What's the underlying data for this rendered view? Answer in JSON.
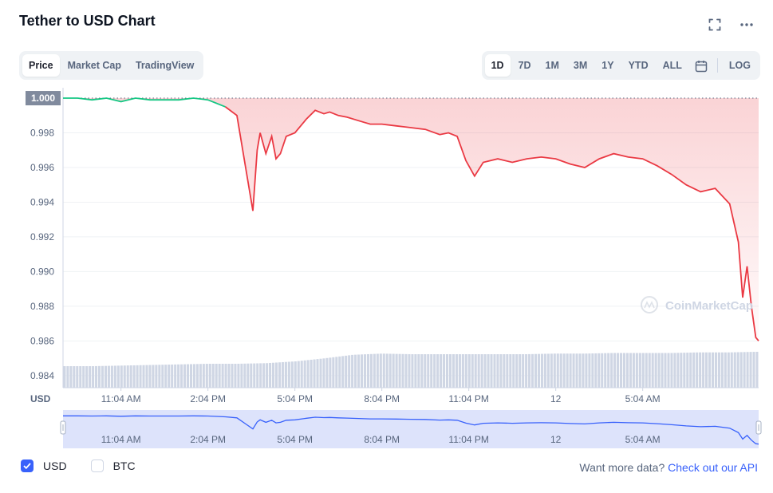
{
  "header": {
    "title": "Tether to USD Chart"
  },
  "icons": {
    "fullscreen": "fullscreen-icon",
    "more": "more-dots-icon",
    "calendar": "calendar-icon",
    "watermark": "coinmarketcap-logo-icon"
  },
  "view_tabs": [
    {
      "label": "Price",
      "active": true
    },
    {
      "label": "Market Cap",
      "active": false
    },
    {
      "label": "TradingView",
      "active": false
    }
  ],
  "range_tabs": [
    {
      "label": "1D",
      "active": true
    },
    {
      "label": "7D",
      "active": false
    },
    {
      "label": "1M",
      "active": false
    },
    {
      "label": "3M",
      "active": false
    },
    {
      "label": "1Y",
      "active": false
    },
    {
      "label": "YTD",
      "active": false
    },
    {
      "label": "ALL",
      "active": false
    }
  ],
  "log_label": "LOG",
  "watermark_text": "CoinMarketCap",
  "legend": {
    "usd_label": "USD",
    "btc_label": "BTC",
    "usd_checked": true,
    "btc_checked": false
  },
  "more_data": {
    "prefix": "Want more data?",
    "link": "Check out our API"
  },
  "colors": {
    "up": "#16c784",
    "down": "#ea3943",
    "accent": "#3861fb",
    "volume": "#cfd6e4",
    "navigator": "#dde3fb"
  },
  "chart_data": {
    "type": "line",
    "currency_label": "USD",
    "current_price_label": "1.000",
    "ylim": [
      0.9833,
      1.0006
    ],
    "y_ticks": [
      "0.998",
      "0.996",
      "0.994",
      "0.992",
      "0.990",
      "0.988",
      "0.986",
      "0.984"
    ],
    "x_ticks": [
      "11:04 AM",
      "2:04 PM",
      "5:04 PM",
      "8:04 PM",
      "11:04 PM",
      "12",
      "5:04 AM"
    ],
    "x_tick_hours": [
      2,
      5,
      8,
      11,
      14,
      17,
      20
    ],
    "x_range_hours": [
      0,
      24
    ],
    "baseline": 1.0,
    "series": [
      {
        "x": [
          0,
          0.5,
          1,
          1.5,
          2,
          2.5,
          3,
          3.5,
          4,
          4.5,
          5,
          5.6,
          6.0,
          6.3,
          6.55,
          6.7,
          6.8,
          7.0,
          7.2,
          7.35,
          7.5,
          7.7,
          8.0,
          8.4,
          8.7,
          9.0,
          9.2,
          9.5,
          9.8,
          10.2,
          10.6,
          11.0,
          11.5,
          12.0,
          12.5,
          13.0,
          13.3,
          13.6,
          13.9,
          14.2,
          14.5,
          15.0,
          15.5,
          16.0,
          16.5,
          17.0,
          17.5,
          18.0,
          18.5,
          19.0,
          19.5,
          20.0,
          20.5,
          21.0,
          21.5,
          22.0,
          22.5,
          23.0,
          23.3,
          23.45,
          23.6,
          23.75,
          23.9,
          24.0
        ],
        "y": [
          1.0,
          1.0,
          0.9999,
          1.0,
          0.9998,
          1.0,
          0.9999,
          0.9999,
          0.9999,
          1.0,
          0.9999,
          0.9995,
          0.999,
          0.996,
          0.9935,
          0.997,
          0.998,
          0.9968,
          0.9978,
          0.9965,
          0.9968,
          0.9978,
          0.998,
          0.9988,
          0.9993,
          0.9991,
          0.9992,
          0.999,
          0.9989,
          0.9987,
          0.9985,
          0.9985,
          0.9984,
          0.9983,
          0.9982,
          0.9979,
          0.998,
          0.9978,
          0.9964,
          0.9955,
          0.9963,
          0.9965,
          0.9963,
          0.9965,
          0.9966,
          0.9965,
          0.9962,
          0.996,
          0.9965,
          0.9968,
          0.9966,
          0.9965,
          0.9961,
          0.9956,
          0.995,
          0.9946,
          0.9948,
          0.9939,
          0.9917,
          0.9885,
          0.9903,
          0.988,
          0.9862,
          0.986
        ]
      }
    ],
    "volume": [
      0.36,
      0.36,
      0.37,
      0.38,
      0.39,
      0.4,
      0.4,
      0.41,
      0.44,
      0.49,
      0.55,
      0.57,
      0.56,
      0.56,
      0.56,
      0.56,
      0.56,
      0.57,
      0.57,
      0.58,
      0.58,
      0.58,
      0.59,
      0.59,
      0.6
    ]
  }
}
